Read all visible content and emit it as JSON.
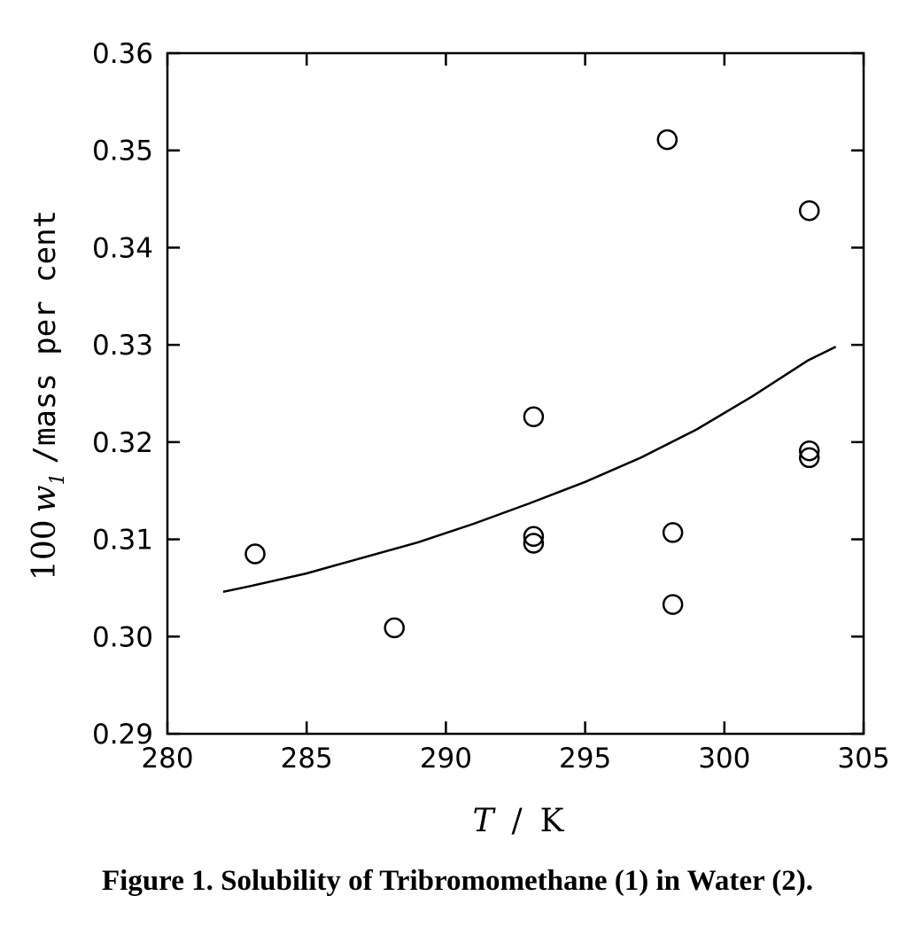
{
  "caption": "Figure 1. Solubility of Tribromomethane (1) in Water (2).",
  "chart_data": {
    "type": "scatter",
    "xlabel": "T / K",
    "ylabel": "100 w1 /mass per cent",
    "xlim": [
      280,
      305
    ],
    "ylim": [
      0.29,
      0.36
    ],
    "x_ticks": [
      "280",
      "285",
      "290",
      "295",
      "300",
      "305"
    ],
    "y_ticks": [
      "0.29",
      "0.30",
      "0.31",
      "0.32",
      "0.33",
      "0.34",
      "0.35",
      "0.36"
    ],
    "grid": false,
    "series": [
      {
        "kind": "points",
        "marker": "open-circle",
        "points": [
          {
            "x": 283.15,
            "y": 0.3085
          },
          {
            "x": 288.15,
            "y": 0.3009
          },
          {
            "x": 293.15,
            "y": 0.3226
          },
          {
            "x": 293.15,
            "y": 0.3103
          },
          {
            "x": 293.15,
            "y": 0.3096
          },
          {
            "x": 297.95,
            "y": 0.3511
          },
          {
            "x": 298.15,
            "y": 0.3107
          },
          {
            "x": 298.15,
            "y": 0.3033
          },
          {
            "x": 303.05,
            "y": 0.3438
          },
          {
            "x": 303.05,
            "y": 0.3191
          },
          {
            "x": 303.05,
            "y": 0.3184
          }
        ]
      },
      {
        "kind": "curve",
        "line_style": "solid",
        "points": [
          {
            "x": 282.0,
            "y": 0.3046
          },
          {
            "x": 283.0,
            "y": 0.3052
          },
          {
            "x": 285.0,
            "y": 0.3065
          },
          {
            "x": 287.0,
            "y": 0.3081
          },
          {
            "x": 289.0,
            "y": 0.3097
          },
          {
            "x": 291.0,
            "y": 0.3116
          },
          {
            "x": 293.0,
            "y": 0.3137
          },
          {
            "x": 295.0,
            "y": 0.3159
          },
          {
            "x": 297.0,
            "y": 0.3184
          },
          {
            "x": 299.0,
            "y": 0.3213
          },
          {
            "x": 301.0,
            "y": 0.3247
          },
          {
            "x": 303.0,
            "y": 0.3284
          },
          {
            "x": 304.0,
            "y": 0.3298
          }
        ]
      }
    ]
  }
}
